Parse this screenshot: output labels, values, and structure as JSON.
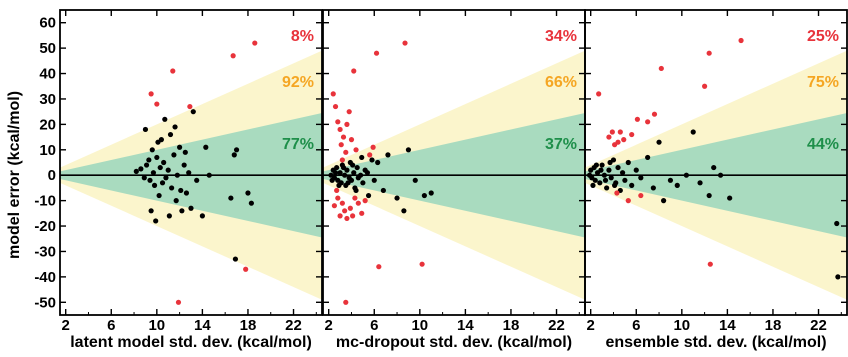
{
  "figure": {
    "ylabel": "model error (kcal/mol)",
    "colors": {
      "outer_band": "#fbf5cc",
      "inner_band": "#a9dbbf",
      "within_point": "#000000",
      "outside_point": "#e8333b",
      "pct_outside": "#e8333b",
      "pct_outer_band": "#f5a623",
      "pct_inner_band": "#1e8f4a"
    }
  },
  "chart_data": [
    {
      "type": "scatter",
      "xlabel": "latent model std. dev. (kcal/mol)",
      "xlim": [
        1.5,
        24.5
      ],
      "ylim": [
        -55,
        65
      ],
      "xticks": [
        2,
        6,
        10,
        14,
        18,
        22
      ],
      "yticks": [
        -50,
        -40,
        -30,
        -20,
        -10,
        0,
        10,
        20,
        30,
        40,
        50,
        60
      ],
      "pct_outside": "8%",
      "pct_outer_band": "92%",
      "pct_inner_band": "77%",
      "black_points": [
        [
          8.2,
          1.5
        ],
        [
          8.6,
          2.5
        ],
        [
          8.9,
          -1
        ],
        [
          9.1,
          4
        ],
        [
          9.3,
          6
        ],
        [
          9.4,
          -2
        ],
        [
          9.6,
          10
        ],
        [
          9.7,
          1
        ],
        [
          9.8,
          -4
        ],
        [
          10.0,
          7
        ],
        [
          10.1,
          13
        ],
        [
          10.2,
          -8
        ],
        [
          10.3,
          3
        ],
        [
          10.5,
          -3
        ],
        [
          10.6,
          5
        ],
        [
          10.8,
          -1
        ],
        [
          11.0,
          2
        ],
        [
          11.2,
          16
        ],
        [
          11.3,
          -5
        ],
        [
          11.5,
          8
        ],
        [
          11.7,
          -10
        ],
        [
          11.8,
          0
        ],
        [
          12.0,
          11
        ],
        [
          12.2,
          -14
        ],
        [
          12.4,
          4
        ],
        [
          12.6,
          -7
        ],
        [
          12.8,
          1
        ],
        [
          13.0,
          -13
        ],
        [
          13.2,
          25
        ],
        [
          9.0,
          18
        ],
        [
          9.5,
          -14
        ],
        [
          9.9,
          -18
        ],
        [
          10.4,
          14
        ],
        [
          10.7,
          22
        ],
        [
          11.1,
          -16
        ],
        [
          11.6,
          19
        ],
        [
          12.1,
          -6
        ],
        [
          12.5,
          9
        ],
        [
          13.5,
          -2
        ],
        [
          14.0,
          -16
        ],
        [
          14.3,
          11
        ],
        [
          14.6,
          0
        ],
        [
          16.5,
          -9
        ],
        [
          16.8,
          8
        ],
        [
          17.0,
          10
        ],
        [
          18.0,
          -7
        ],
        [
          18.3,
          -11
        ],
        [
          16.9,
          -33
        ]
      ],
      "red_points": [
        [
          11.4,
          41
        ],
        [
          9.5,
          32
        ],
        [
          10.0,
          28
        ],
        [
          12.9,
          27
        ],
        [
          16.7,
          47
        ],
        [
          18.6,
          52
        ],
        [
          17.8,
          -37
        ],
        [
          11.9,
          -50
        ]
      ]
    },
    {
      "type": "scatter",
      "xlabel": "mc-dropout std. dev. (kcal/mol)",
      "xlim": [
        1.5,
        24.5
      ],
      "ylim": [
        -55,
        65
      ],
      "xticks": [
        2,
        6,
        10,
        14,
        18,
        22
      ],
      "yticks": [
        -50,
        -40,
        -30,
        -20,
        -10,
        0,
        10,
        20,
        30,
        40,
        50,
        60
      ],
      "pct_outside": "34%",
      "pct_outer_band": "66%",
      "pct_inner_band": "37%",
      "black_points": [
        [
          2.2,
          0
        ],
        [
          2.4,
          2
        ],
        [
          2.5,
          -1
        ],
        [
          2.7,
          3
        ],
        [
          2.8,
          -2
        ],
        [
          3.0,
          1
        ],
        [
          3.1,
          -3
        ],
        [
          3.2,
          4
        ],
        [
          3.4,
          0
        ],
        [
          3.5,
          -4
        ],
        [
          3.6,
          2
        ],
        [
          3.8,
          -1
        ],
        [
          3.9,
          5
        ],
        [
          4.0,
          -2
        ],
        [
          4.2,
          1
        ],
        [
          4.3,
          -5
        ],
        [
          4.5,
          3
        ],
        [
          4.6,
          -1
        ],
        [
          4.8,
          0
        ],
        [
          5.0,
          -3
        ],
        [
          5.2,
          2
        ],
        [
          5.5,
          -8
        ],
        [
          5.8,
          6
        ],
        [
          6.0,
          -2
        ],
        [
          6.3,
          5
        ],
        [
          6.8,
          -6
        ],
        [
          7.2,
          8
        ],
        [
          8.0,
          -9
        ],
        [
          8.6,
          -14
        ],
        [
          9.0,
          10
        ],
        [
          9.6,
          -2
        ],
        [
          10.4,
          -8
        ],
        [
          11.0,
          -7
        ],
        [
          2.3,
          -2
        ],
        [
          2.6,
          1
        ],
        [
          2.9,
          -4
        ],
        [
          3.3,
          3
        ],
        [
          3.7,
          -3
        ],
        [
          4.1,
          4
        ],
        [
          4.4,
          -6
        ],
        [
          4.9,
          7
        ],
        [
          5.4,
          1
        ]
      ],
      "red_points": [
        [
          2.4,
          32
        ],
        [
          2.6,
          27
        ],
        [
          2.8,
          21
        ],
        [
          3.0,
          18
        ],
        [
          3.1,
          12
        ],
        [
          3.3,
          15
        ],
        [
          3.5,
          9
        ],
        [
          3.6,
          20
        ],
        [
          3.8,
          25
        ],
        [
          4.0,
          14
        ],
        [
          4.2,
          41
        ],
        [
          4.4,
          10
        ],
        [
          2.5,
          -12
        ],
        [
          2.8,
          -9
        ],
        [
          3.0,
          -16
        ],
        [
          3.2,
          -11
        ],
        [
          3.4,
          -14
        ],
        [
          3.6,
          -17
        ],
        [
          3.9,
          -13
        ],
        [
          4.1,
          -16
        ],
        [
          4.3,
          -9
        ],
        [
          4.6,
          -11
        ],
        [
          4.9,
          -15
        ],
        [
          5.2,
          -10
        ],
        [
          5.6,
          8
        ],
        [
          5.9,
          11
        ],
        [
          6.2,
          48
        ],
        [
          8.7,
          52
        ],
        [
          3.5,
          -50
        ],
        [
          6.4,
          -36
        ],
        [
          10.2,
          -35
        ],
        [
          3.2,
          6
        ],
        [
          2.7,
          -6
        ]
      ]
    },
    {
      "type": "scatter",
      "xlabel": "ensemble std. dev. (kcal/mol)",
      "xlim": [
        1.5,
        24.5
      ],
      "ylim": [
        -55,
        65
      ],
      "xticks": [
        2,
        6,
        10,
        14,
        18,
        22
      ],
      "yticks": [
        -50,
        -40,
        -30,
        -20,
        -10,
        0,
        10,
        20,
        30,
        40,
        50,
        60
      ],
      "pct_outside": "25%",
      "pct_outer_band": "75%",
      "pct_inner_band": "44%",
      "black_points": [
        [
          1.9,
          0
        ],
        [
          2.0,
          2
        ],
        [
          2.1,
          -1
        ],
        [
          2.3,
          3
        ],
        [
          2.4,
          -2
        ],
        [
          2.6,
          1
        ],
        [
          2.8,
          -3
        ],
        [
          3.0,
          4
        ],
        [
          3.2,
          0
        ],
        [
          3.4,
          -5
        ],
        [
          3.6,
          2
        ],
        [
          3.8,
          -1
        ],
        [
          4.0,
          6
        ],
        [
          4.2,
          -3
        ],
        [
          4.4,
          3
        ],
        [
          4.6,
          -6
        ],
        [
          4.8,
          1
        ],
        [
          5.0,
          -2
        ],
        [
          5.3,
          5
        ],
        [
          5.6,
          -4
        ],
        [
          6.0,
          2
        ],
        [
          6.4,
          -1
        ],
        [
          7.0,
          7
        ],
        [
          7.5,
          -5
        ],
        [
          8.0,
          13
        ],
        [
          8.4,
          -10
        ],
        [
          9.0,
          -2
        ],
        [
          9.6,
          -4
        ],
        [
          10.4,
          0
        ],
        [
          11.0,
          17
        ],
        [
          11.6,
          -3
        ],
        [
          12.4,
          -8
        ],
        [
          12.8,
          3
        ],
        [
          13.4,
          0
        ],
        [
          14.2,
          -9
        ],
        [
          23.6,
          -19
        ],
        [
          23.7,
          -40
        ],
        [
          2.2,
          -4
        ],
        [
          2.5,
          4
        ],
        [
          2.9,
          2
        ],
        [
          3.3,
          -2
        ],
        [
          3.7,
          5
        ],
        [
          4.1,
          -4
        ]
      ]
    },
    {
      "type": "scatter",
      "red_points_only": true,
      "red_points": [
        [
          2.7,
          32
        ],
        [
          3.6,
          15
        ],
        [
          3.9,
          17
        ],
        [
          4.1,
          12
        ],
        [
          4.4,
          13
        ],
        [
          4.6,
          17
        ],
        [
          4.9,
          14
        ],
        [
          5.3,
          -10
        ],
        [
          5.6,
          16
        ],
        [
          6.1,
          22
        ],
        [
          6.4,
          -8
        ],
        [
          7.0,
          21
        ],
        [
          7.6,
          24
        ],
        [
          8.2,
          42
        ],
        [
          12.0,
          35
        ],
        [
          12.4,
          48
        ],
        [
          15.2,
          53
        ],
        [
          12.5,
          -35
        ],
        [
          4.3,
          -7
        ]
      ]
    }
  ]
}
